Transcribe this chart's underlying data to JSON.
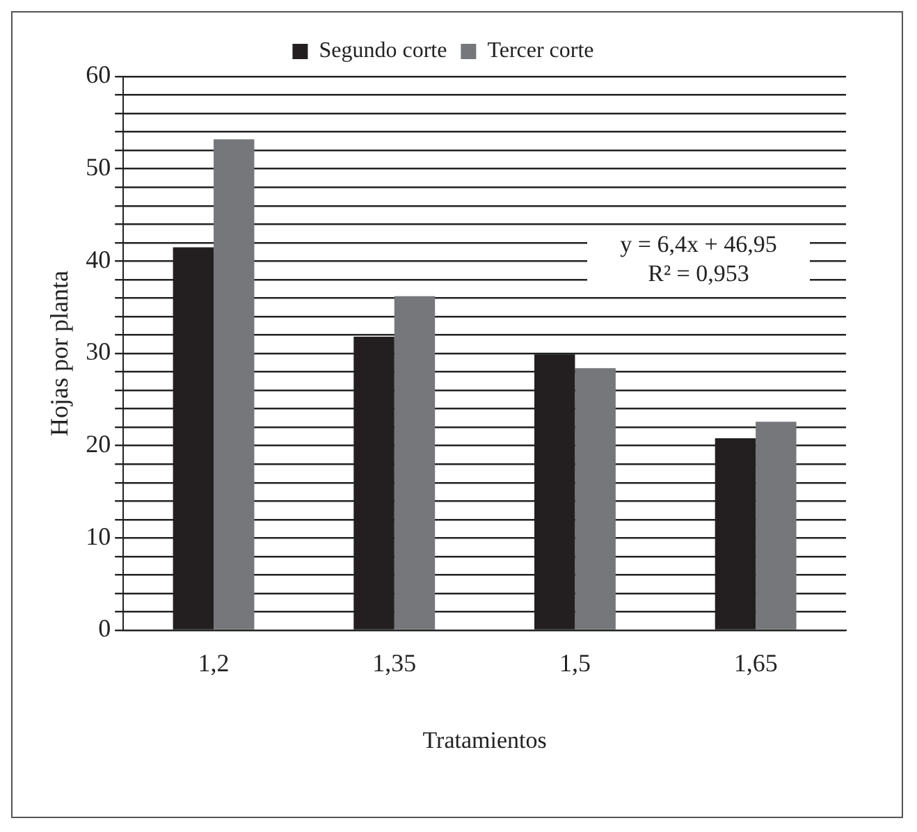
{
  "chart_data": {
    "type": "bar",
    "xlabel": "Tratamientos",
    "ylabel": "Hojas por planta",
    "categories": [
      "1,2",
      "1,35",
      "1,5",
      "1,65"
    ],
    "series": [
      {
        "name": "Segundo corte",
        "color": "#231f20",
        "values": [
          41.5,
          31.8,
          29.9,
          20.8
        ]
      },
      {
        "name": "Tercer corte",
        "color": "#76777b",
        "values": [
          53.2,
          36.2,
          28.4,
          22.6
        ]
      }
    ],
    "ylim": [
      0,
      60
    ],
    "yticks": [
      0,
      {
        "value": 2,
        "label": null
      },
      {
        "value": 4,
        "label": null
      },
      {
        "value": 6,
        "label": null
      },
      {
        "value": 8,
        "label": null
      },
      10,
      {
        "value": 12,
        "label": null
      },
      {
        "value": 14,
        "label": null
      },
      {
        "value": 16,
        "label": null
      },
      {
        "value": 18,
        "label": null
      },
      20,
      {
        "value": 22,
        "label": null
      },
      {
        "value": 24,
        "label": null
      },
      {
        "value": 26,
        "label": null
      },
      {
        "value": 28,
        "label": null
      },
      30,
      {
        "value": 32,
        "label": null
      },
      {
        "value": 34,
        "label": null
      },
      {
        "value": 36,
        "label": null
      },
      {
        "value": 38,
        "label": null
      },
      40,
      {
        "value": 42,
        "label": null
      },
      {
        "value": 44,
        "label": null
      },
      {
        "value": 46,
        "label": null
      },
      {
        "value": 48,
        "label": null
      },
      50,
      {
        "value": 52,
        "label": null
      },
      {
        "value": 54,
        "label": null
      },
      {
        "value": 56,
        "label": null
      },
      {
        "value": 58,
        "label": null
      },
      60
    ],
    "grid": "y",
    "legend": "top",
    "annotations": [
      "y = 6,4x + 46,95",
      "R² = 0,953"
    ]
  }
}
